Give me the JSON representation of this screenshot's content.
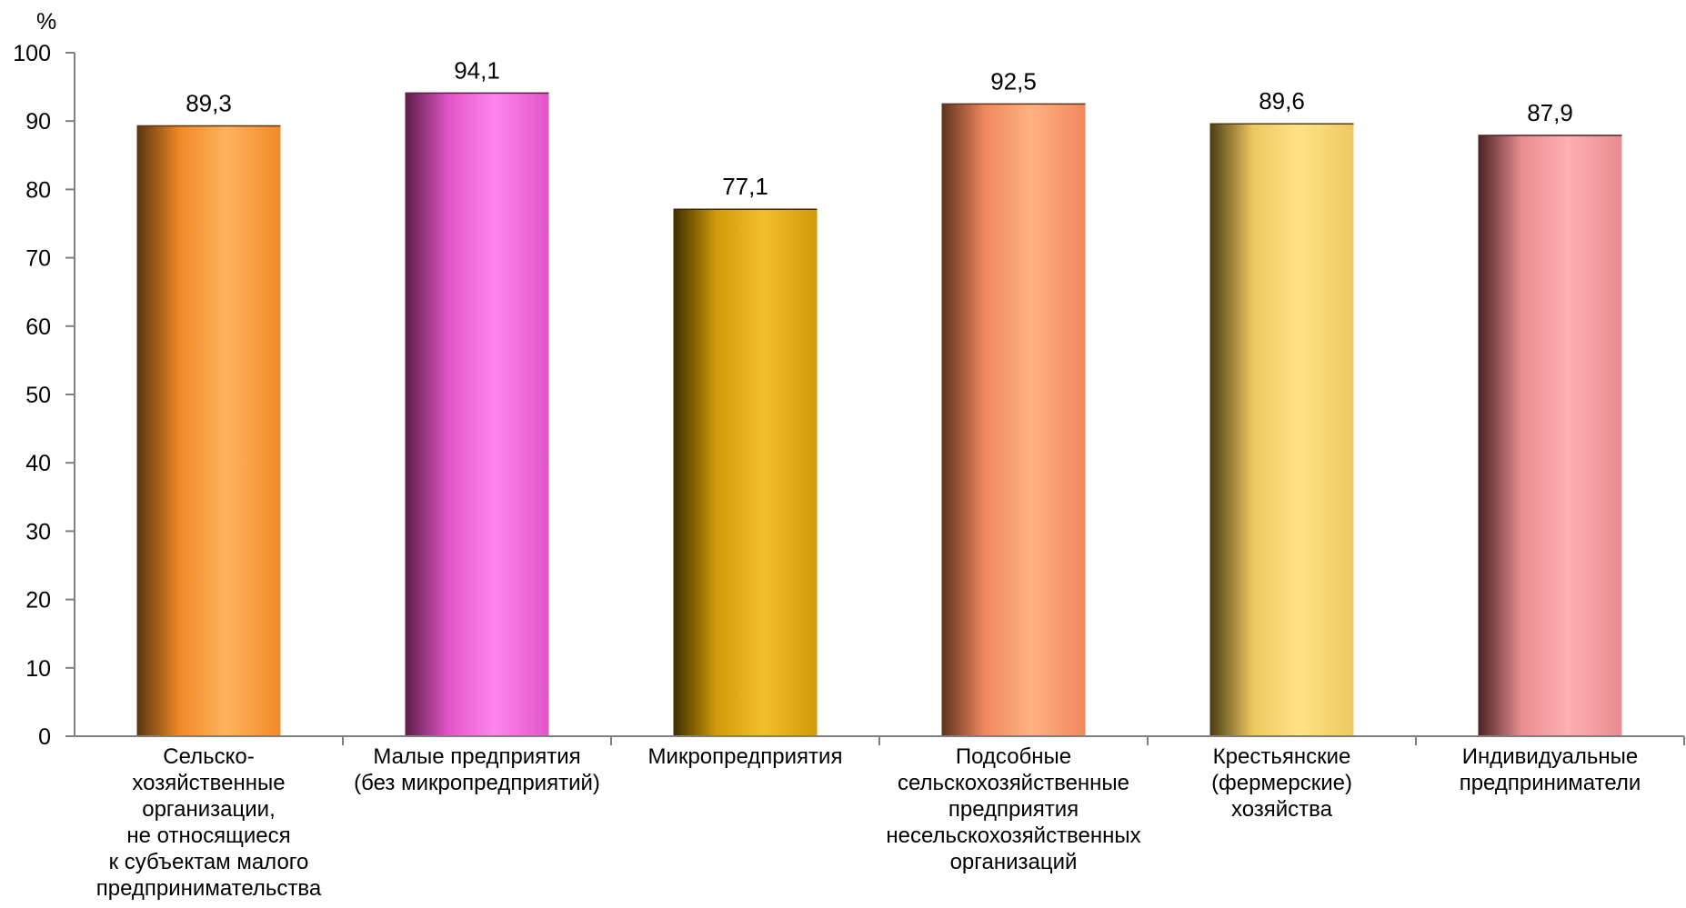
{
  "chart_data": {
    "type": "bar",
    "unit_label": "%",
    "ylim": [
      0,
      100
    ],
    "yticks": [
      0,
      10,
      20,
      30,
      40,
      50,
      60,
      70,
      80,
      90,
      100
    ],
    "grid": false,
    "legend": "none",
    "categories": [
      "Сельско-\nхозяйственные\nорганизации,\nне относящиеся\nк субъектам малого\nпредпринимательства",
      "Малые предприятия\n(без микропредприятий)",
      "Микропредприятия",
      "Подсобные\nсельскохозяйственные\nпредприятия\nнесельскохозяйственных\nорганизаций",
      "Крестьянские\n(фермерские)\nхозяйства",
      "Индивидуальные\nпредприниматели"
    ],
    "values": [
      89.3,
      94.1,
      77.1,
      92.5,
      89.6,
      87.9
    ],
    "data_labels": [
      "89,3",
      "94,1",
      "77,1",
      "92,5",
      "89,6",
      "87,9"
    ],
    "bar_colors": [
      {
        "dark": "#5a3410",
        "mid": "#f08a28",
        "light": "#ffb35e"
      },
      {
        "dark": "#5c1e48",
        "mid": "#e055c8",
        "light": "#ff86ee"
      },
      {
        "dark": "#3d2e00",
        "mid": "#d09a08",
        "light": "#f2bf2c"
      },
      {
        "dark": "#5c3220",
        "mid": "#f0885c",
        "light": "#ffb283"
      },
      {
        "dark": "#4a3c14",
        "mid": "#eec860",
        "light": "#ffe386"
      },
      {
        "dark": "#4a2224",
        "mid": "#e88c90",
        "light": "#ffb0b2"
      }
    ]
  }
}
